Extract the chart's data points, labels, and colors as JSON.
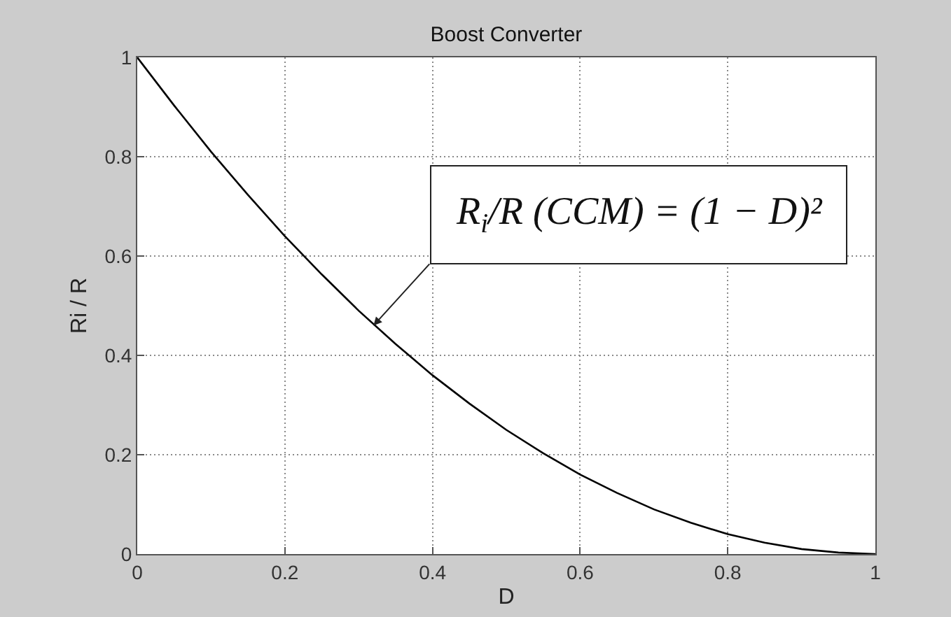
{
  "chart_data": {
    "type": "line",
    "title": "Boost Converter",
    "xlabel": "D",
    "ylabel": "Ri / R",
    "x": [
      0,
      0.05,
      0.1,
      0.15,
      0.2,
      0.25,
      0.3,
      0.35,
      0.4,
      0.45,
      0.5,
      0.55,
      0.6,
      0.65,
      0.7,
      0.75,
      0.8,
      0.85,
      0.9,
      0.95,
      1
    ],
    "series": [
      {
        "color": "#000000",
        "values": [
          1,
          0.903,
          0.81,
          0.723,
          0.64,
          0.563,
          0.49,
          0.423,
          0.36,
          0.303,
          0.25,
          0.203,
          0.16,
          0.123,
          0.09,
          0.063,
          0.04,
          0.023,
          0.01,
          0.003,
          0
        ]
      }
    ],
    "xlim": [
      0,
      1
    ],
    "ylim": [
      0,
      1
    ],
    "xticks": [
      0,
      0.2,
      0.4,
      0.6,
      0.8,
      1
    ],
    "yticks": [
      0,
      0.2,
      0.4,
      0.6,
      0.8,
      1
    ],
    "grid": true,
    "marker": "none",
    "line_style": "solid",
    "annotations": [
      {
        "text": "R$_{i}$/R (CCM) = (1 − D)²",
        "x": 0.32,
        "y": 0.46
      }
    ]
  }
}
